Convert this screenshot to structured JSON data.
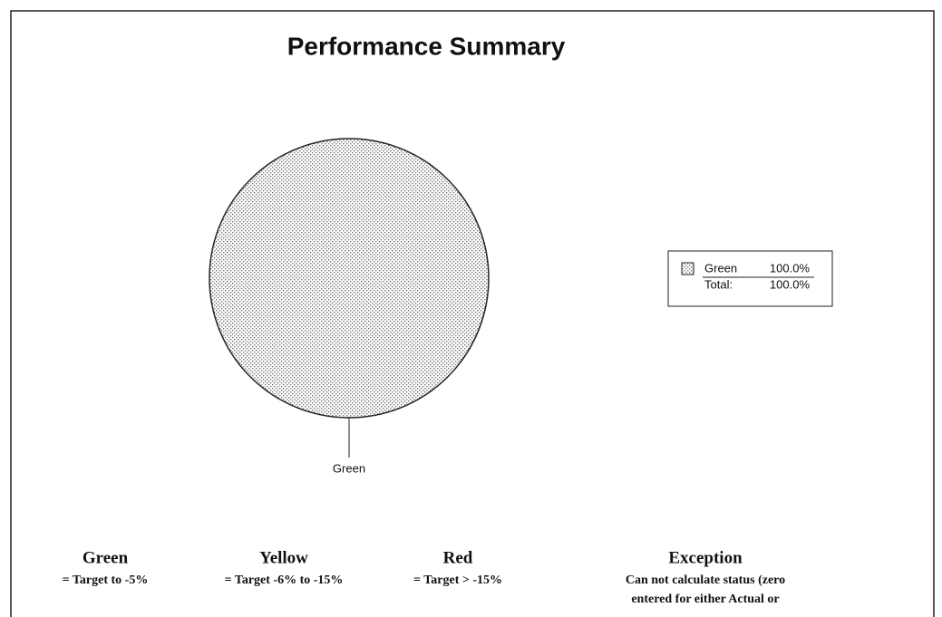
{
  "chart_data": {
    "type": "pie",
    "title": "Performance Summary",
    "categories": [
      "Green"
    ],
    "values": [
      100
    ],
    "value_labels": [
      "100.0%"
    ],
    "total": {
      "label": "Total:",
      "value": 100,
      "value_label": "100.0%"
    },
    "key": [
      {
        "name": "Green",
        "lines": [
          "= Target to -5%"
        ]
      },
      {
        "name": "Yellow",
        "lines": [
          "= Target -6% to -15%"
        ]
      },
      {
        "name": "Red",
        "lines": [
          "= Target > -15%"
        ]
      },
      {
        "name": "Exception",
        "lines": [
          "Can not calculate status (zero",
          "entered for either Actual or"
        ]
      }
    ]
  }
}
